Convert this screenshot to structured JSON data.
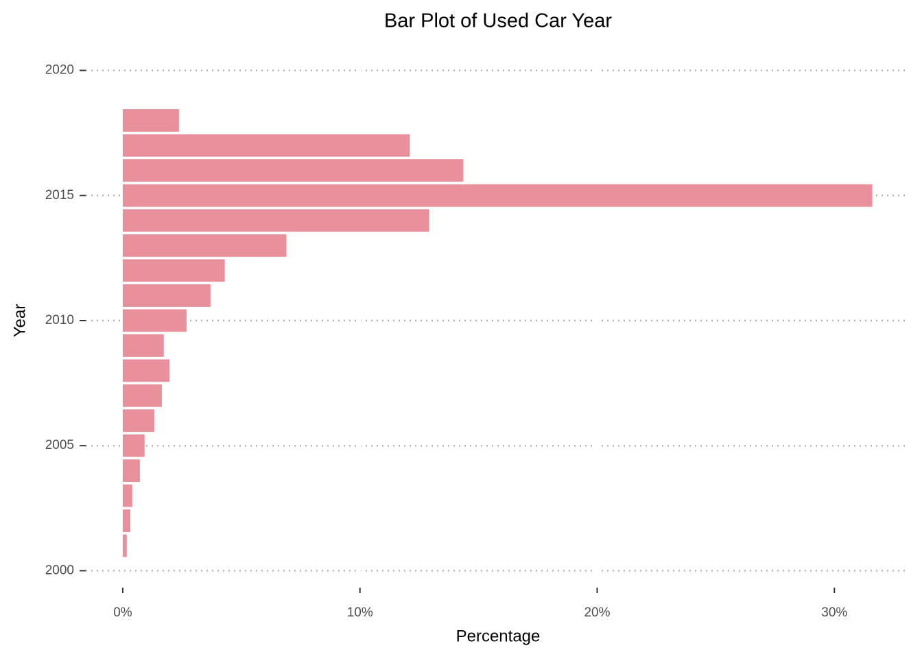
{
  "chart_data": {
    "type": "bar",
    "orientation": "horizontal",
    "title": "Bar Plot of Used Car Year",
    "x_label": "Percentage",
    "y_label": "Year",
    "categories": [
      2018,
      2017,
      2016,
      2015,
      2014,
      2013,
      2012,
      2011,
      2010,
      2009,
      2008,
      2007,
      2006,
      2005,
      2004,
      2003,
      2002,
      2001
    ],
    "values": [
      2.37,
      12.1,
      14.36,
      31.6,
      12.92,
      6.9,
      4.3,
      3.7,
      2.69,
      1.73,
      1.97,
      1.65,
      1.33,
      0.92,
      0.72,
      0.4,
      0.32,
      0.17
    ],
    "color": "#e8909c",
    "xlim": [
      -1.56,
      33.0
    ],
    "xticks": [
      {
        "value": 0,
        "label": "0%"
      },
      {
        "value": 10,
        "label": "10%"
      },
      {
        "value": 20,
        "label": "20%"
      },
      {
        "value": 30,
        "label": "30%"
      }
    ],
    "ylim": [
      1999.6,
      2020.4
    ],
    "yticks": [
      2000,
      2005,
      2010,
      2015,
      2020
    ],
    "grid": true
  }
}
